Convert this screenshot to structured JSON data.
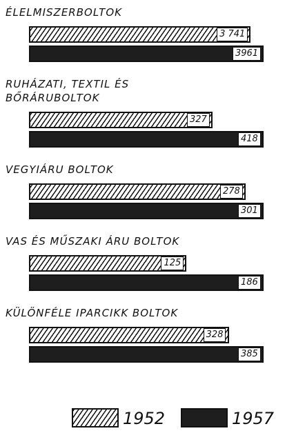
{
  "chart_data": {
    "type": "bar",
    "orientation": "horizontal",
    "categories": [
      "ÉLELMISZERBOLTOK",
      "RUHÁZATI, TEXTIL ÉS\nBŐRÁRUBOLTOK",
      "VEGYIÁRU BOLTOK",
      "VAS ÉS MŰSZAKI ÁRU BOLTOK",
      "KÜLÖNFÉLE IPARCIKK BOLTOK"
    ],
    "series": [
      {
        "name": "1952",
        "color": "hatched",
        "values": [
          3741,
          327,
          278,
          125,
          328
        ],
        "value_labels": [
          "3 741",
          "327",
          "278",
          "125",
          "328"
        ]
      },
      {
        "name": "1957",
        "color": "#1e1e1e",
        "values": [
          3961,
          418,
          301,
          186,
          385
        ],
        "value_labels": [
          "3961",
          "418",
          "301",
          "186",
          "385"
        ]
      }
    ]
  }
}
